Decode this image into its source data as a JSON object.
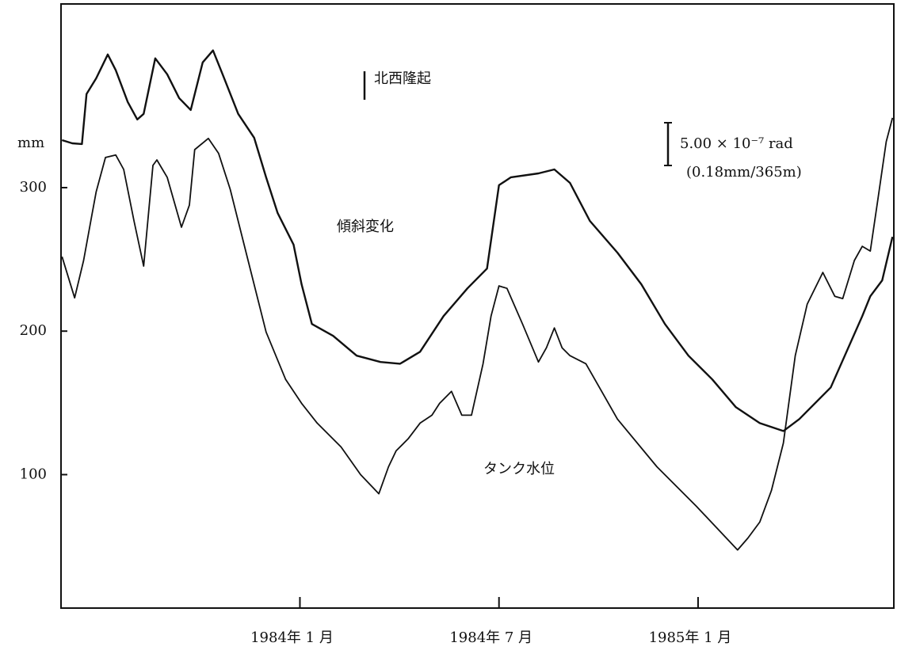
{
  "chart_data": {
    "type": "line",
    "ylabel": "mm",
    "annotations": {
      "uplift": "北西隆起",
      "scale": "5.00 × 10⁻⁷ rad",
      "scale_note": "(0.18mm/365m)"
    },
    "xlim": [
      -7.2,
      17.9
    ],
    "ylim": [
      7,
      428
    ],
    "xticks": [
      {
        "value": 0,
        "label": "1984年 1 月"
      },
      {
        "value": 6,
        "label": "1984年 7 月"
      },
      {
        "value": 12,
        "label": "1985年 1 月"
      }
    ],
    "yticks": [
      100,
      200,
      300
    ],
    "series": [
      {
        "name": "傾斜変化",
        "color": "#111111",
        "x": [
          -7.17,
          -6.86,
          -6.57,
          -6.43,
          -6.14,
          -5.79,
          -5.55,
          -5.19,
          -4.9,
          -4.71,
          -4.36,
          -4.0,
          -3.64,
          -3.29,
          -2.93,
          -2.62,
          -2.33,
          -1.86,
          -1.38,
          -1.02,
          -0.67,
          -0.19,
          0.05,
          0.36,
          1.0,
          1.71,
          2.43,
          3.02,
          3.62,
          4.33,
          5.05,
          5.64,
          6.0,
          6.36,
          7.19,
          7.67,
          8.14,
          8.74,
          9.57,
          10.29,
          11.0,
          11.71,
          12.43,
          13.14,
          13.86,
          14.57,
          15.05,
          16.0,
          16.95,
          17.19,
          17.55,
          17.86
        ],
        "values": [
          333.1,
          330.9,
          330.4,
          365.2,
          376.2,
          392.8,
          381.8,
          359.7,
          347.5,
          351.4,
          390.1,
          379,
          362.4,
          354.1,
          387.3,
          395.6,
          379,
          351.4,
          334.8,
          307.2,
          282.3,
          260.2,
          232.6,
          205,
          196.7,
          182.9,
          178.5,
          177.3,
          185.6,
          210.5,
          229.8,
          243.6,
          301.7,
          307.2,
          309.9,
          312.7,
          303.3,
          276.8,
          254.7,
          232.6,
          205,
          182.9,
          166.3,
          147,
          135.9,
          130.4,
          138.7,
          160.8,
          210.5,
          224.3,
          235.4,
          265.7
        ]
      },
      {
        "name": "タンク水位",
        "color": "#111111",
        "x": [
          -7.17,
          -6.79,
          -6.52,
          -6.26,
          -6.14,
          -5.86,
          -5.55,
          -5.31,
          -5.0,
          -4.71,
          -4.43,
          -4.31,
          -4.0,
          -3.57,
          -3.33,
          -3.17,
          -2.76,
          -2.45,
          -2.1,
          -1.62,
          -1.02,
          -0.43,
          0.05,
          0.52,
          1.24,
          1.83,
          2.38,
          2.67,
          2.9,
          3.26,
          3.62,
          3.98,
          4.21,
          4.57,
          4.88,
          5.17,
          5.52,
          5.76,
          6.0,
          6.24,
          6.71,
          7.19,
          7.43,
          7.67,
          7.9,
          8.14,
          8.62,
          9.57,
          10.76,
          11.95,
          13.19,
          13.5,
          13.86,
          14.21,
          14.57,
          14.93,
          15.29,
          15.76,
          16.12,
          16.36,
          16.71,
          16.95,
          17.19,
          17.43,
          17.67,
          17.86
        ],
        "values": [
          251.9,
          223.2,
          249.2,
          282.3,
          297.2,
          321,
          322.7,
          312.7,
          276.8,
          245.3,
          315.5,
          319.3,
          307.2,
          272.4,
          287.8,
          326.5,
          334.3,
          323.8,
          298.9,
          254.7,
          199.4,
          166.3,
          149.7,
          135.9,
          119.3,
          100,
          86.7,
          105.5,
          116.6,
          124.9,
          135.9,
          141.4,
          149.7,
          158,
          141.4,
          141.4,
          177.3,
          210.5,
          231.5,
          229.8,
          205,
          178.5,
          188.4,
          202.2,
          188.4,
          182.9,
          177.3,
          138.7,
          105.5,
          77.9,
          47.5,
          55.8,
          66.9,
          88.9,
          122,
          182.9,
          218.8,
          240.9,
          224.3,
          222.7,
          249.2,
          259.1,
          255.8,
          293.4,
          332,
          348.6
        ]
      }
    ]
  }
}
